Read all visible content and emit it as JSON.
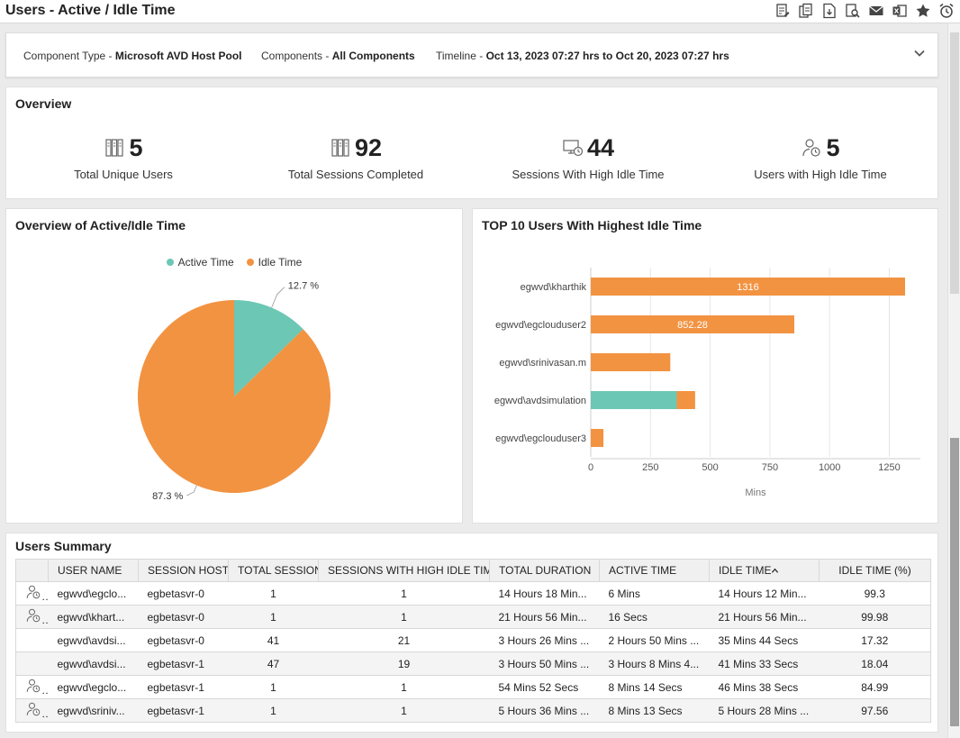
{
  "page": {
    "title": "Users - Active / Idle Time"
  },
  "toolbar": {
    "icons": [
      "report-edit-icon",
      "report-copy-icon",
      "pdf-download-icon",
      "search-report-icon",
      "email-icon",
      "excel-export-icon",
      "favorite-star-icon",
      "alarm-clock-icon"
    ]
  },
  "filters": {
    "component_type_label": "Component Type - ",
    "component_type_value": "Microsoft AVD Host Pool",
    "components_label": "Components - ",
    "components_value": "All Components",
    "timeline_label": "Timeline - ",
    "timeline_value": "Oct 13, 2023 07:27 hrs to Oct 20, 2023 07:27 hrs"
  },
  "overview": {
    "title": "Overview",
    "kpis": [
      {
        "value": "5",
        "label": "Total Unique Users",
        "icon": "server-rack-icon"
      },
      {
        "value": "92",
        "label": "Total Sessions Completed",
        "icon": "server-rack-icon"
      },
      {
        "value": "44",
        "label": "Sessions With High Idle Time",
        "icon": "monitor-clock-icon"
      },
      {
        "value": "5",
        "label": "Users with High Idle Time",
        "icon": "user-clock-icon"
      }
    ]
  },
  "pie_panel": {
    "title": "Overview of Active/Idle Time"
  },
  "bar_panel": {
    "title": "TOP 10 Users With Highest Idle Time"
  },
  "colors": {
    "active": "#6cc7b5",
    "idle": "#f29342"
  },
  "chart_data": [
    {
      "type": "pie",
      "title": "Overview of Active/Idle Time",
      "legend": [
        "Active Time",
        "Idle Time"
      ],
      "legend_position": "top-center",
      "slices": [
        {
          "name": "Active Time",
          "value": 12.7,
          "label": "12.7 %"
        },
        {
          "name": "Idle Time",
          "value": 87.3,
          "label": "87.3 %"
        }
      ]
    },
    {
      "type": "bar",
      "orientation": "horizontal",
      "stacked": true,
      "title": "TOP 10 Users With Highest Idle Time",
      "xlabel": "Mins",
      "xlim": [
        0,
        1350
      ],
      "xticks": [
        0,
        250,
        500,
        750,
        1000,
        1250
      ],
      "categories": [
        "egwvd\\kharthik",
        "egwvd\\egclouduser2",
        "egwvd\\srinivasan.m",
        "egwvd\\avdsimulation",
        "egwvd\\egclouduser3"
      ],
      "series": [
        {
          "name": "Active Time",
          "values": [
            0,
            0,
            0,
            360,
            0
          ]
        },
        {
          "name": "Idle Time",
          "values": [
            1316,
            852.28,
            333,
            77,
            53
          ]
        }
      ],
      "data_labels": [
        "1316",
        "852.28",
        "",
        "",
        ""
      ]
    }
  ],
  "users_summary": {
    "title": "Users Summary",
    "columns": [
      "",
      "USER NAME",
      "SESSION HOST",
      "TOTAL SESSIONS",
      "SESSIONS WITH HIGH IDLE TIME",
      "TOTAL DURATION",
      "ACTIVE TIME",
      "IDLE TIME",
      "IDLE TIME (%)"
    ],
    "rows": [
      {
        "icon": true,
        "user": "egwvd\\egclo...",
        "host": "egbetasvr-0",
        "total": "1",
        "high": "1",
        "duration": "14 Hours 18 Min...",
        "active": "6 Mins",
        "idle": "14 Hours 12 Min...",
        "pct": "99.3"
      },
      {
        "icon": true,
        "user": "egwvd\\khart...",
        "host": "egbetasvr-0",
        "total": "1",
        "high": "1",
        "duration": "21 Hours 56 Min...",
        "active": "16 Secs",
        "idle": "21 Hours 56 Min...",
        "pct": "99.98"
      },
      {
        "icon": false,
        "user": "egwvd\\avdsi...",
        "host": "egbetasvr-0",
        "total": "41",
        "high": "21",
        "duration": "3 Hours 26 Mins ...",
        "active": "2 Hours 50 Mins ...",
        "idle": "35 Mins 44 Secs",
        "pct": "17.32"
      },
      {
        "icon": false,
        "user": "egwvd\\avdsi...",
        "host": "egbetasvr-1",
        "total": "47",
        "high": "19",
        "duration": "3 Hours 50 Mins ...",
        "active": "3 Hours 8 Mins 4...",
        "idle": "41 Mins 33 Secs",
        "pct": "18.04"
      },
      {
        "icon": true,
        "user": "egwvd\\egclo...",
        "host": "egbetasvr-1",
        "total": "1",
        "high": "1",
        "duration": "54 Mins 52 Secs",
        "active": "8 Mins 14 Secs",
        "idle": "46 Mins 38 Secs",
        "pct": "84.99"
      },
      {
        "icon": true,
        "user": "egwvd\\sriniv...",
        "host": "egbetasvr-1",
        "total": "1",
        "high": "1",
        "duration": "5 Hours 36 Mins ...",
        "active": "8 Mins 13 Secs",
        "idle": "5 Hours 28 Mins ...",
        "pct": "97.56"
      }
    ]
  }
}
